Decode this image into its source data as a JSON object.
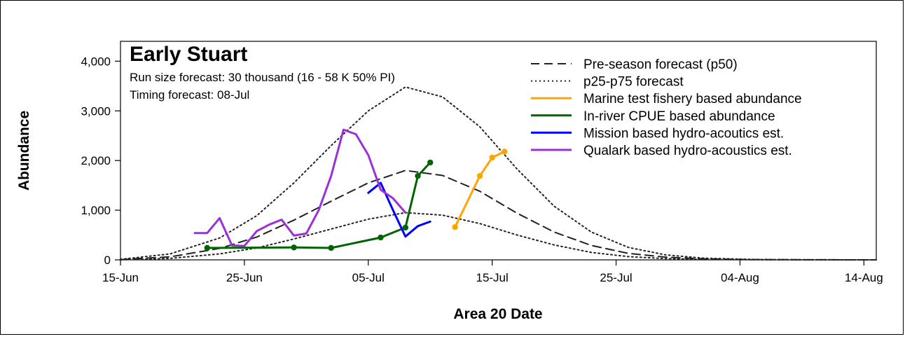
{
  "chart_data": {
    "type": "line",
    "title": "Early Stuart",
    "subtitle_lines": [
      "Run size forecast: 30 thousand (16 - 58 K 50% PI)",
      "Timing forecast: 08-Jul"
    ],
    "xlabel": "Area 20 Date",
    "ylabel": "Abundance",
    "x_range": [
      "2023-06-15",
      "2023-08-15"
    ],
    "ylim": [
      0,
      4400
    ],
    "x_ticks": [
      {
        "date": "2023-06-15",
        "label": "15-Jun"
      },
      {
        "date": "2023-06-25",
        "label": "25-Jun"
      },
      {
        "date": "2023-07-05",
        "label": "05-Jul"
      },
      {
        "date": "2023-07-15",
        "label": "15-Jul"
      },
      {
        "date": "2023-07-25",
        "label": "25-Jul"
      },
      {
        "date": "2023-08-04",
        "label": "04-Aug"
      },
      {
        "date": "2023-08-14",
        "label": "14-Aug"
      }
    ],
    "y_ticks": [
      {
        "value": 0,
        "label": "0"
      },
      {
        "value": 1000,
        "label": "1,000"
      },
      {
        "value": 2000,
        "label": "2,000"
      },
      {
        "value": 3000,
        "label": "3,000"
      },
      {
        "value": 4000,
        "label": "4,000"
      }
    ],
    "grid": false,
    "legend_position": "top-right",
    "series": [
      {
        "name": "Pre-season forecast (p50)",
        "color": "#222222",
        "style": "dashed",
        "markers": false,
        "x": [
          "2023-06-15",
          "2023-06-19",
          "2023-06-23",
          "2023-06-26",
          "2023-06-29",
          "2023-07-02",
          "2023-07-05",
          "2023-07-08",
          "2023-07-11",
          "2023-07-14",
          "2023-07-17",
          "2023-07-20",
          "2023-07-23",
          "2023-07-26",
          "2023-07-29",
          "2023-08-01",
          "2023-08-05",
          "2023-08-10",
          "2023-08-15"
        ],
        "y": [
          5,
          60,
          230,
          460,
          800,
          1180,
          1550,
          1800,
          1700,
          1380,
          940,
          560,
          290,
          130,
          55,
          20,
          5,
          2,
          0
        ]
      },
      {
        "name": "p25-p75 forecast",
        "color": "#222222",
        "style": "dotted",
        "markers": false,
        "x": [
          "2023-06-15",
          "2023-06-19",
          "2023-06-23",
          "2023-06-26",
          "2023-06-29",
          "2023-07-02",
          "2023-07-05",
          "2023-07-08",
          "2023-07-11",
          "2023-07-14",
          "2023-07-17",
          "2023-07-20",
          "2023-07-23",
          "2023-07-26",
          "2023-07-29",
          "2023-08-01",
          "2023-08-05",
          "2023-08-10",
          "2023-08-15"
        ],
        "y": [
          10,
          120,
          440,
          890,
          1550,
          2300,
          3000,
          3480,
          3280,
          2680,
          1830,
          1080,
          560,
          250,
          100,
          35,
          8,
          2,
          0
        ]
      },
      {
        "name": "",
        "color": "#222222",
        "style": "dotted",
        "markers": false,
        "x": [
          "2023-06-15",
          "2023-06-19",
          "2023-06-23",
          "2023-06-26",
          "2023-06-29",
          "2023-07-02",
          "2023-07-05",
          "2023-07-08",
          "2023-07-11",
          "2023-07-14",
          "2023-07-17",
          "2023-07-20",
          "2023-07-23",
          "2023-07-26",
          "2023-07-29",
          "2023-08-01",
          "2023-08-05",
          "2023-08-10",
          "2023-08-15"
        ],
        "y": [
          2,
          30,
          120,
          240,
          420,
          620,
          820,
          950,
          900,
          730,
          500,
          300,
          150,
          65,
          25,
          10,
          3,
          1,
          0
        ]
      },
      {
        "name": "Marine test fishery based abundance",
        "color": "#ffa500",
        "style": "solid",
        "markers": true,
        "x": [
          "2023-07-12",
          "2023-07-14",
          "2023-07-15",
          "2023-07-16"
        ],
        "y": [
          660,
          1690,
          2060,
          2180
        ]
      },
      {
        "name": "In-river CPUE based abundance",
        "color": "#006400",
        "style": "solid",
        "markers": true,
        "x": [
          "2023-06-22",
          "2023-06-29",
          "2023-07-02",
          "2023-07-06",
          "2023-07-08",
          "2023-07-09",
          "2023-07-10"
        ],
        "y": [
          240,
          250,
          240,
          450,
          650,
          1690,
          1960
        ]
      },
      {
        "name": "Mission based hydro-acoutics est.",
        "color": "#0000ff",
        "style": "solid",
        "markers": false,
        "x": [
          "2023-07-05",
          "2023-07-06",
          "2023-07-07",
          "2023-07-08",
          "2023-07-09",
          "2023-07-10"
        ],
        "y": [
          1350,
          1550,
          1000,
          470,
          680,
          770
        ]
      },
      {
        "name": "Qualark based hydro-acoustics est.",
        "color": "#9b30d9",
        "style": "solid",
        "markers": false,
        "x": [
          "2023-06-21",
          "2023-06-22",
          "2023-06-23",
          "2023-06-24",
          "2023-06-25",
          "2023-06-26",
          "2023-06-27",
          "2023-06-28",
          "2023-06-29",
          "2023-06-30",
          "2023-07-01",
          "2023-07-02",
          "2023-07-03",
          "2023-07-04",
          "2023-07-05",
          "2023-07-06",
          "2023-07-07",
          "2023-07-08"
        ],
        "y": [
          540,
          540,
          840,
          290,
          280,
          580,
          710,
          810,
          490,
          530,
          1000,
          1690,
          2620,
          2530,
          2110,
          1410,
          1240,
          950
        ]
      }
    ]
  }
}
